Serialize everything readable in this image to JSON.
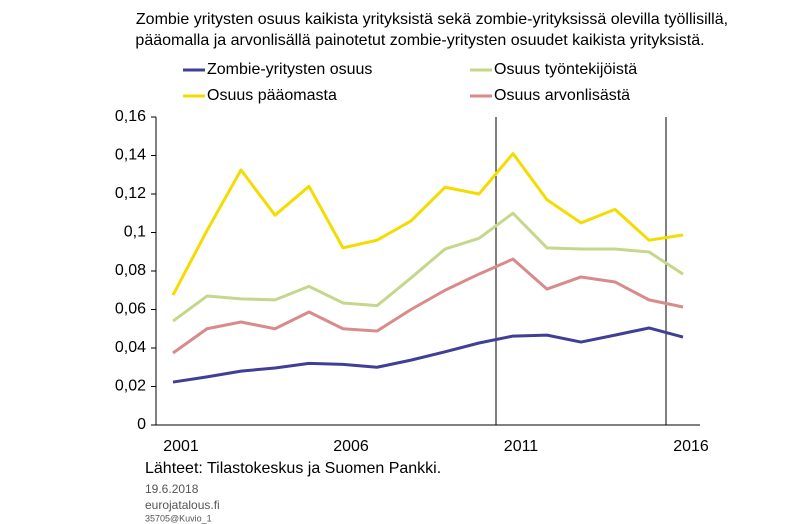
{
  "chart_data": {
    "type": "line",
    "title": [
      "Zombie yritysten osuus kaikista yrityksistä sekä zombie-yrityksissä olevilla työllisillä,",
      "pääomalla ja arvonlisällä painotetut zombie-yritysten osuudet kaikista yrityksistä."
    ],
    "categories": [
      "2001",
      null,
      null,
      null,
      null,
      "2006",
      null,
      null,
      null,
      null,
      "2011",
      null,
      null,
      null,
      null,
      "2016"
    ],
    "series": [
      {
        "name": "Zombie-yritysten osuus",
        "color": "#3f3f95",
        "values": [
          0.0223,
          0.025,
          0.028,
          0.0296,
          0.032,
          0.0315,
          0.03,
          0.0337,
          0.038,
          0.0426,
          0.0462,
          0.0467,
          0.0431,
          0.0467,
          0.0504,
          0.0457
        ]
      },
      {
        "name": "Osuus työntekijöistä",
        "color": "#c4d78a",
        "values": [
          0.054,
          0.067,
          0.0655,
          0.065,
          0.072,
          0.0634,
          0.062,
          0.0764,
          0.0914,
          0.097,
          0.11,
          0.092,
          0.0914,
          0.0914,
          0.0899,
          0.0784
        ]
      },
      {
        "name": "Osuus pääomasta",
        "color": "#f5dc00",
        "values": [
          0.0675,
          0.101,
          0.1325,
          0.109,
          0.124,
          0.092,
          0.096,
          0.106,
          0.1235,
          0.12,
          0.141,
          0.117,
          0.105,
          0.112,
          0.096,
          0.0987
        ]
      },
      {
        "name": "Osuus arvonlisästä",
        "color": "#d98a8a",
        "values": [
          0.0374,
          0.05,
          0.0535,
          0.05,
          0.0587,
          0.05,
          0.0488,
          0.06,
          0.07,
          0.0784,
          0.0862,
          0.0706,
          0.0769,
          0.0743,
          0.065,
          0.0613
        ]
      }
    ],
    "ylim": [
      0,
      0.16
    ],
    "yticks": [
      0,
      {
        "value": 0.02,
        "label": "0,02"
      },
      {
        "value": 0.04,
        "label": "0,04"
      },
      {
        "value": 0.06,
        "label": "0,06"
      },
      {
        "value": 0.08,
        "label": "0,08"
      },
      {
        "value": 0.1,
        "label": "0,1"
      },
      {
        "value": 0.12,
        "label": "0,12"
      },
      {
        "value": 0.14,
        "label": "0,14"
      },
      {
        "value": 0.16,
        "label": "0,16"
      }
    ],
    "source": "Lähteet: Tilastokeskus  ja Suomen Pankki.",
    "date": "19.6.2018",
    "site": "eurojatalous.fi",
    "code": "35705@Kuvio_1"
  }
}
